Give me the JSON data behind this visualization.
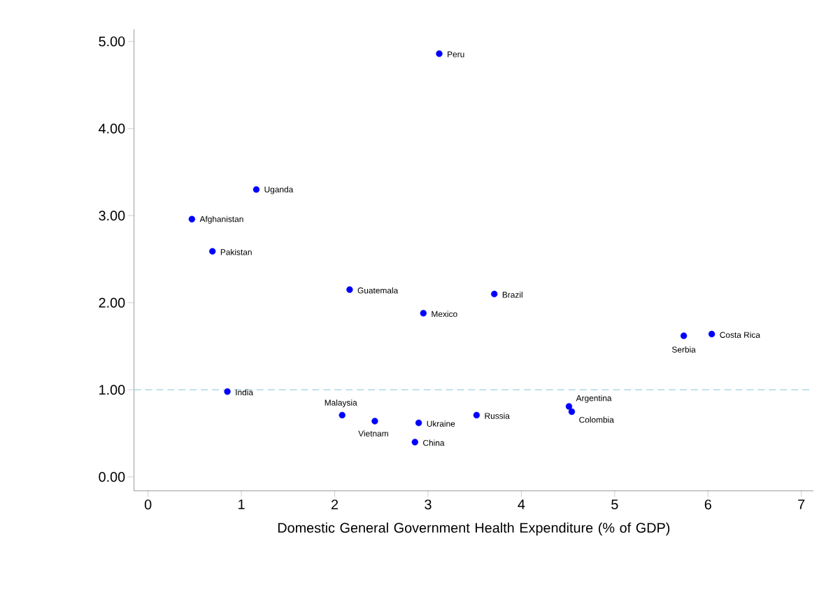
{
  "chart_data": {
    "type": "scatter",
    "xlabel": "Domestic General Government Health Expenditure (% of GDP)",
    "series": [
      {
        "color": "#0000ff",
        "x": [
          3.12,
          1.16,
          0.47,
          0.69,
          2.16,
          3.71,
          2.95,
          5.74,
          6.04,
          0.85,
          2.08,
          2.43,
          2.9,
          3.52,
          2.86,
          4.51,
          4.54
        ],
        "values": [
          4.86,
          3.3,
          2.96,
          2.59,
          2.15,
          2.1,
          1.88,
          1.62,
          1.64,
          0.98,
          0.71,
          0.64,
          0.62,
          0.71,
          0.4,
          0.81,
          0.75
        ]
      }
    ],
    "annotations": [
      {
        "text": "Peru",
        "x": 3.12,
        "y": 4.86
      },
      {
        "text": "Uganda",
        "x": 1.16,
        "y": 3.3
      },
      {
        "text": "Afghanistan",
        "x": 0.47,
        "y": 2.96
      },
      {
        "text": "Pakistan",
        "x": 0.69,
        "y": 2.59
      },
      {
        "text": "Guatemala",
        "x": 2.16,
        "y": 2.15
      },
      {
        "text": "Brazil",
        "x": 3.71,
        "y": 2.1
      },
      {
        "text": "Mexico",
        "x": 2.95,
        "y": 1.88
      },
      {
        "text": "Serbia",
        "x": 5.74,
        "y": 1.62
      },
      {
        "text": "Costa Rica",
        "x": 6.04,
        "y": 1.64
      },
      {
        "text": "India",
        "x": 0.85,
        "y": 0.98
      },
      {
        "text": "Malaysia",
        "x": 2.08,
        "y": 0.71
      },
      {
        "text": "Vietnam",
        "x": 2.43,
        "y": 0.64
      },
      {
        "text": "Ukraine",
        "x": 2.9,
        "y": 0.62
      },
      {
        "text": "Russia",
        "x": 3.52,
        "y": 0.71
      },
      {
        "text": "China",
        "x": 2.86,
        "y": 0.4
      },
      {
        "text": "Argentina",
        "x": 4.51,
        "y": 0.81
      },
      {
        "text": "Colombia",
        "x": 4.54,
        "y": 0.75
      }
    ],
    "ref_lines": [
      {
        "axis": "y",
        "value": 1,
        "color": "#add8e6",
        "line_style": "dashed"
      }
    ],
    "xlim": [
      -0.15,
      7.13
    ],
    "ylim": [
      -0.16,
      5.14
    ],
    "xticks": [
      0,
      1,
      2,
      3,
      4,
      5,
      6,
      7
    ],
    "yticks": [
      {
        "value": 0,
        "label": "0.00"
      },
      {
        "value": 1,
        "label": "1.00"
      },
      {
        "value": 2,
        "label": "2.00"
      },
      {
        "value": 3,
        "label": "3.00"
      },
      {
        "value": 4,
        "label": "4.00"
      },
      {
        "value": 5,
        "label": "5.00"
      }
    ],
    "grid": false,
    "marker": "circle"
  }
}
